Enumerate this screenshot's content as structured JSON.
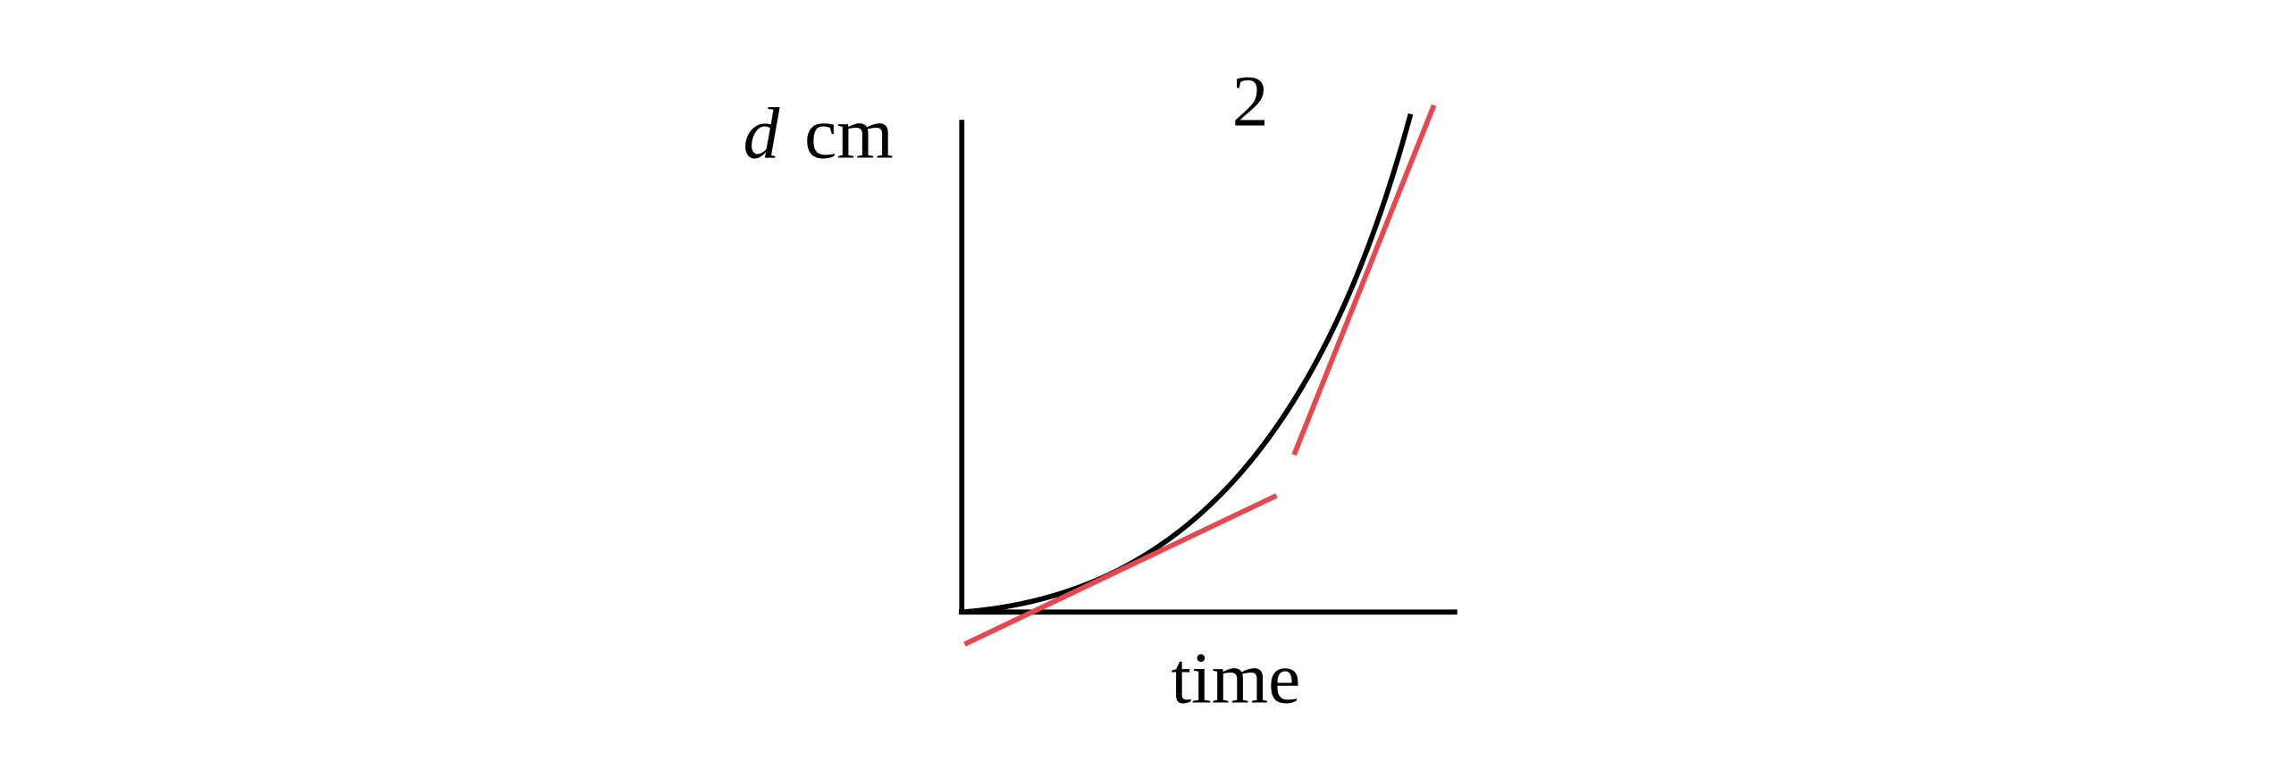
{
  "labels": {
    "panel": "2",
    "y_axis_var": "d",
    "y_axis_unit": "cm",
    "x_axis": "time"
  }
}
